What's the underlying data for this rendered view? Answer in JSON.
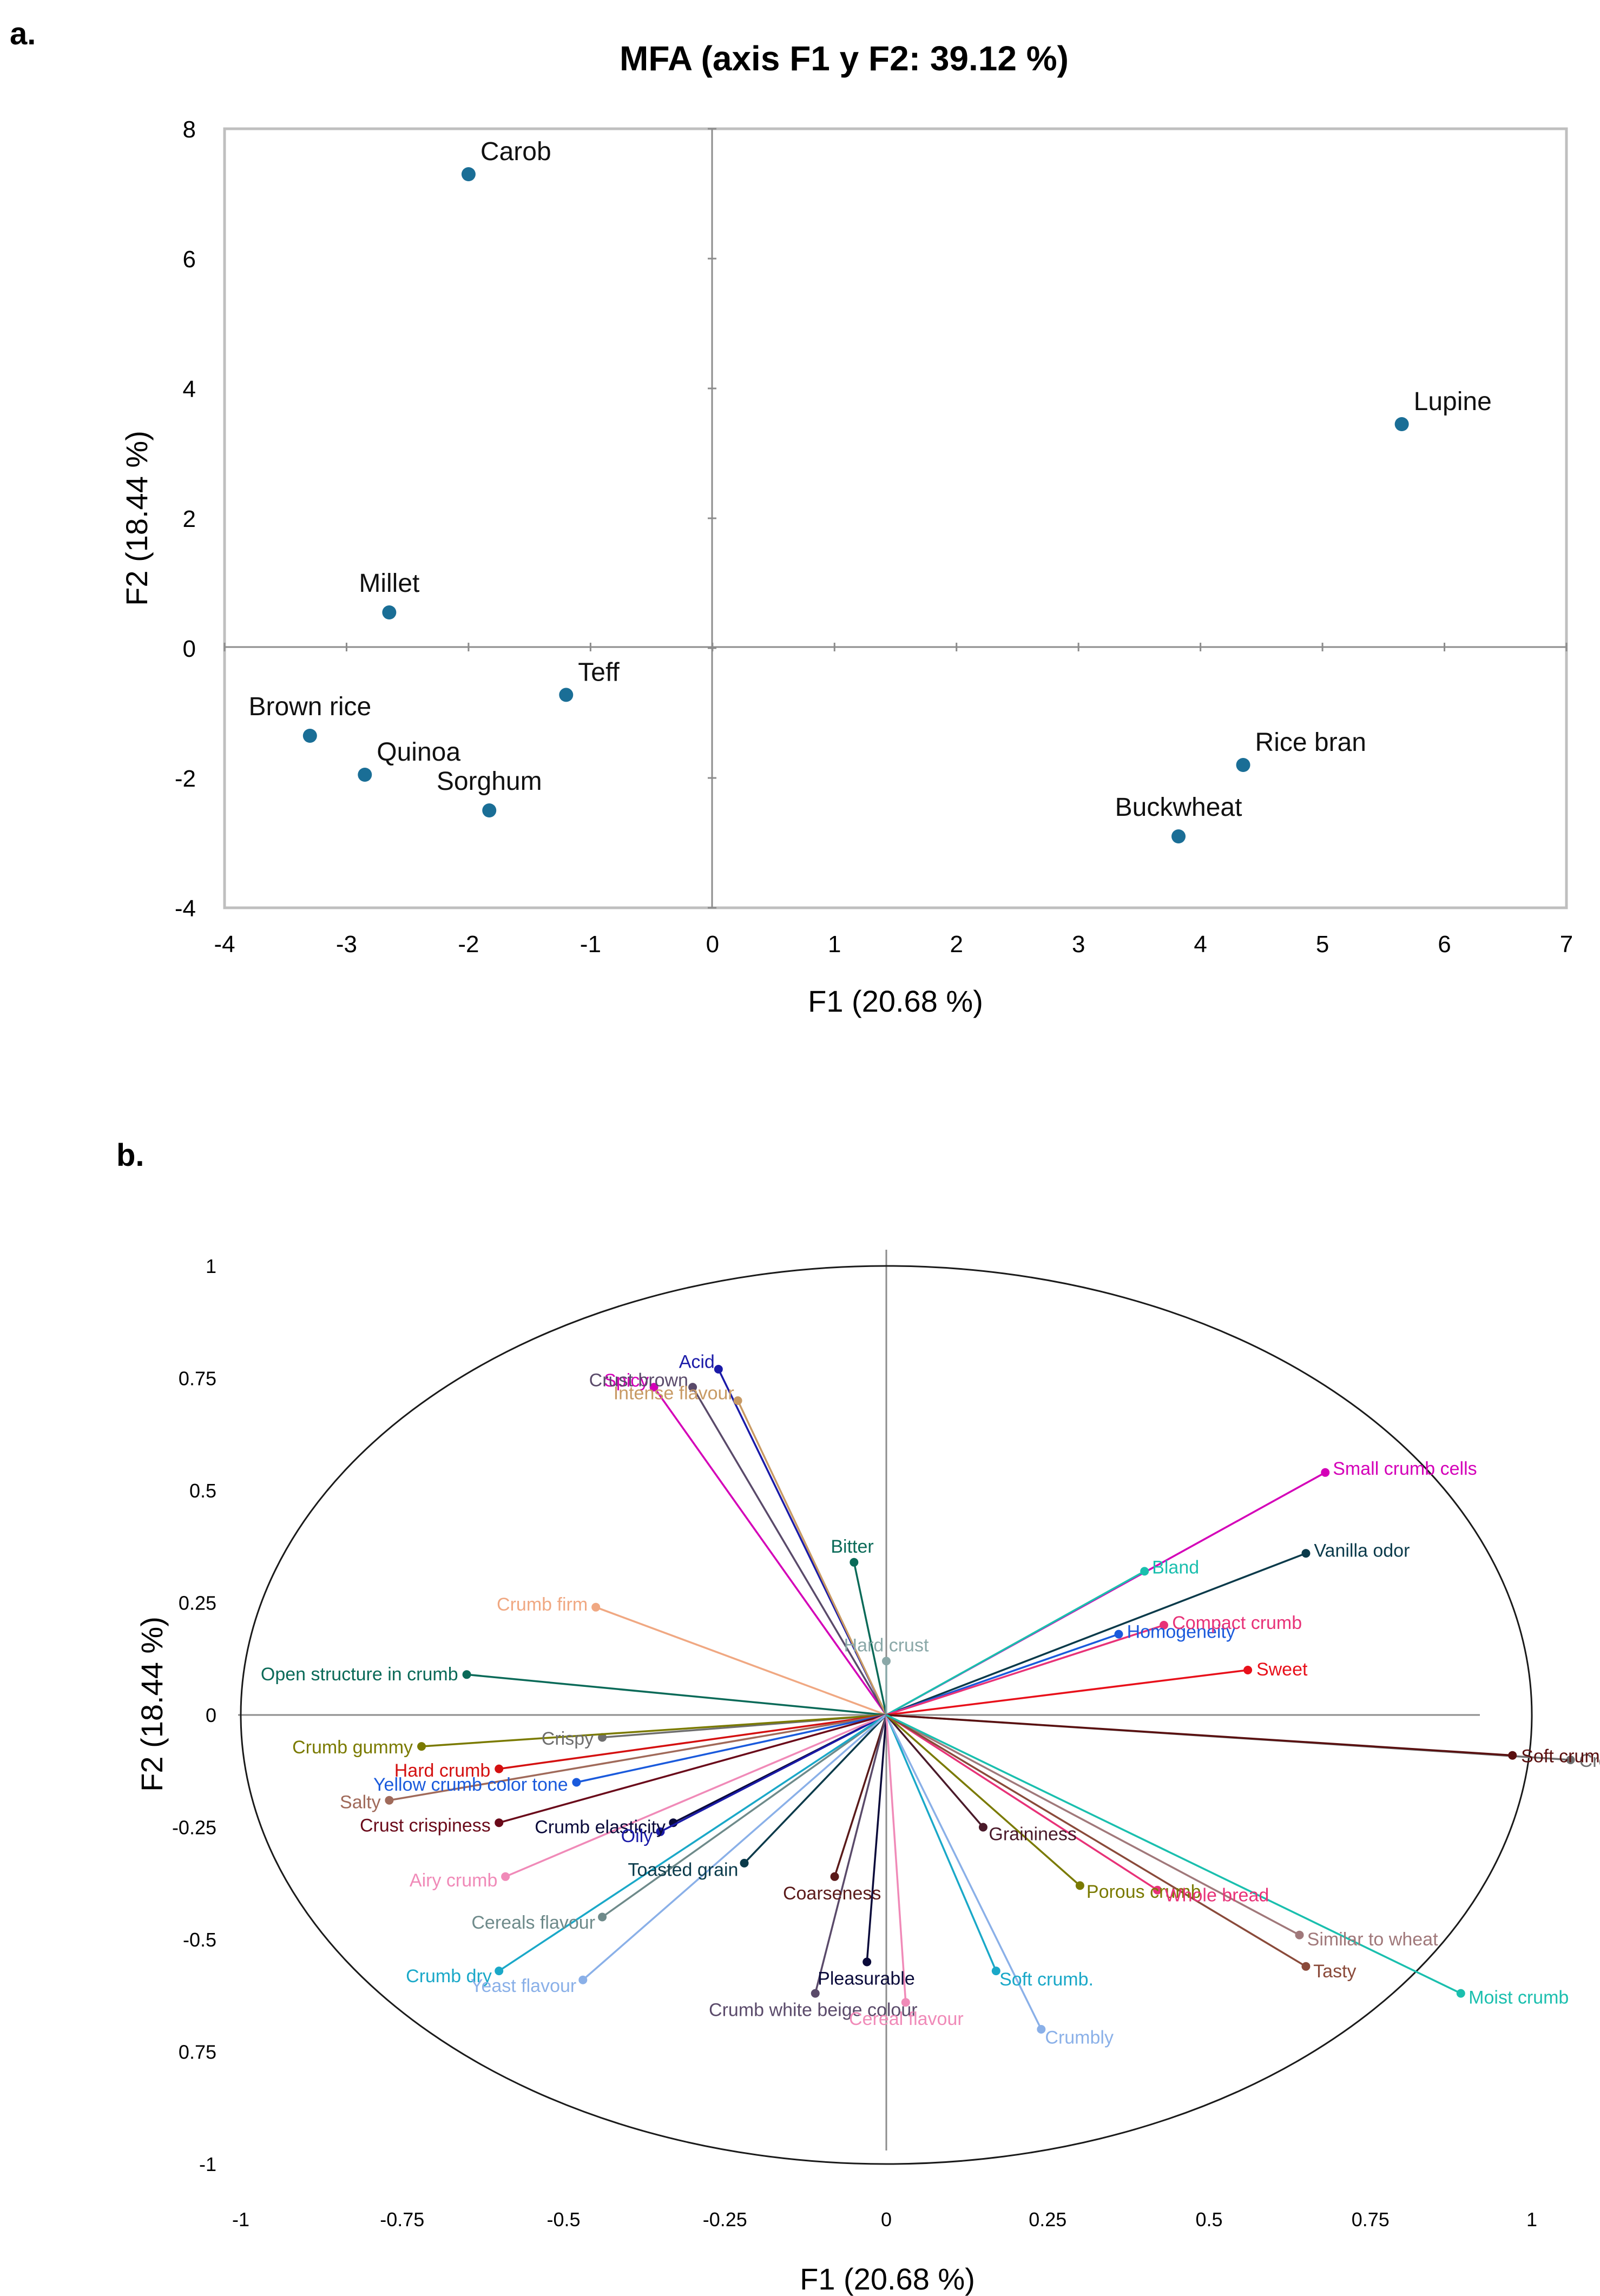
{
  "panels": {
    "a_label": "a.",
    "b_label": "b."
  },
  "chart_data": [
    {
      "type": "scatter",
      "title": "MFA (axis F1 y F2: 39.12 %)",
      "xlabel": "F1 (20.68 %)",
      "ylabel": "F2 (18.44 %)",
      "xlim": [
        -4,
        7
      ],
      "ylim": [
        -4,
        8
      ],
      "xticks": [
        "-4",
        "-3",
        "-2",
        "-1",
        "0",
        "1",
        "2",
        "3",
        "4",
        "5",
        "6",
        "7"
      ],
      "yticks": [
        "8",
        "6",
        "4",
        "2",
        "0",
        "-2",
        "-4"
      ],
      "point_color": "#1a6e96",
      "points": [
        {
          "label": "Carob",
          "x": -2.0,
          "y": 7.3,
          "pos": "ne"
        },
        {
          "label": "Lupine",
          "x": 5.65,
          "y": 3.45,
          "pos": "ne"
        },
        {
          "label": "Millet",
          "x": -2.65,
          "y": 0.55,
          "pos": "n"
        },
        {
          "label": "Teff",
          "x": -1.2,
          "y": -0.72,
          "pos": "ne"
        },
        {
          "label": "Brown rice",
          "x": -3.3,
          "y": -1.35,
          "pos": "n"
        },
        {
          "label": "Quinoa",
          "x": -2.85,
          "y": -1.95,
          "pos": "ne"
        },
        {
          "label": "Sorghum",
          "x": -1.83,
          "y": -2.5,
          "pos": "n"
        },
        {
          "label": "Rice bran",
          "x": 4.35,
          "y": -1.8,
          "pos": "ne"
        },
        {
          "label": "Buckwheat",
          "x": 3.82,
          "y": -2.9,
          "pos": "n"
        }
      ]
    },
    {
      "type": "correlation-circle",
      "xlabel": "F1 (20.68 %)",
      "ylabel": "F2 (18.44 %)",
      "xlim": [
        -1,
        1
      ],
      "ylim": [
        -1,
        1
      ],
      "xticks": [
        "-1",
        "-0.75",
        "-0.5",
        "-0.25",
        "0",
        "0.25",
        "0.5",
        "0.75",
        "1"
      ],
      "yticks": [
        "1",
        "0.75",
        "0.5",
        "0.25",
        "0",
        "-0.25",
        "-0.5",
        "0.75",
        "-1"
      ],
      "vectors": [
        {
          "label": "Spicy",
          "x": -0.36,
          "y": 0.73,
          "color": "#d400b8"
        },
        {
          "label": "Acid",
          "x": -0.26,
          "y": 0.77,
          "color": "#1a1aa8"
        },
        {
          "label": "Crust brown",
          "x": -0.3,
          "y": 0.73,
          "color": "#5a4a6a"
        },
        {
          "label": "Intense flavour",
          "x": -0.23,
          "y": 0.7,
          "color": "#c89a64"
        },
        {
          "label": "Bitter",
          "x": -0.05,
          "y": 0.34,
          "color": "#0a6a58"
        },
        {
          "label": "Hard crust",
          "x": 0.0,
          "y": 0.12,
          "color": "#8aa8a8"
        },
        {
          "label": "Crumb firm",
          "x": -0.45,
          "y": 0.24,
          "color": "#f0a882"
        },
        {
          "label": "Open structure in crumb",
          "x": -0.65,
          "y": 0.09,
          "color": "#0a6a58"
        },
        {
          "label": "Small crumb cells",
          "x": 0.68,
          "y": 0.54,
          "color": "#d400b8"
        },
        {
          "label": "Vanilla odor",
          "x": 0.65,
          "y": 0.36,
          "color": "#0a3a4a"
        },
        {
          "label": "Bland",
          "x": 0.4,
          "y": 0.32,
          "color": "#1abfae"
        },
        {
          "label": "Homogeneity",
          "x": 0.36,
          "y": 0.18,
          "color": "#1a5adc"
        },
        {
          "label": "Compact crumb",
          "x": 0.43,
          "y": 0.2,
          "color": "#e83278"
        },
        {
          "label": "Sweet",
          "x": 0.56,
          "y": 0.1,
          "color": "#e8101a"
        },
        {
          "label": "Creamy",
          "x": 1.06,
          "y": -0.1,
          "color": "#6e6e6e"
        },
        {
          "label": "Soft crumb",
          "x": 0.97,
          "y": -0.09,
          "color": "#5a1010"
        },
        {
          "label": "Crispy",
          "x": -0.44,
          "y": -0.05,
          "color": "#6e6e6e"
        },
        {
          "label": "Crumb gummy",
          "x": -0.72,
          "y": -0.07,
          "color": "#7a7a00"
        },
        {
          "label": "Hard crumb",
          "x": -0.6,
          "y": -0.12,
          "color": "#d41010"
        },
        {
          "label": "Salty",
          "x": -0.77,
          "y": -0.19,
          "color": "#a06a5a"
        },
        {
          "label": "Yellow crumb color tone",
          "x": -0.48,
          "y": -0.15,
          "color": "#1a5adc"
        },
        {
          "label": "Crust crispiness",
          "x": -0.6,
          "y": -0.24,
          "color": "#6a0a1a"
        },
        {
          "label": "Crumb elasticity",
          "x": -0.33,
          "y": -0.24,
          "color": "#0a0a3a"
        },
        {
          "label": "Oily",
          "x": -0.35,
          "y": -0.26,
          "color": "#1a1aa8"
        },
        {
          "label": "Airy crumb",
          "x": -0.59,
          "y": -0.36,
          "color": "#f08ab8"
        },
        {
          "label": "Toasted grain",
          "x": -0.22,
          "y": -0.33,
          "color": "#0a3a4a"
        },
        {
          "label": "Coarseness",
          "x": -0.08,
          "y": -0.36,
          "color": "#5a1a1a"
        },
        {
          "label": "Cereals flavour",
          "x": -0.44,
          "y": -0.45,
          "color": "#6e8a8a"
        },
        {
          "label": "Crumb dry",
          "x": -0.6,
          "y": -0.57,
          "color": "#1aa8c8"
        },
        {
          "label": "Yeast flavour",
          "x": -0.47,
          "y": -0.59,
          "color": "#8ab0e8"
        },
        {
          "label": "Pleasurable",
          "x": -0.03,
          "y": -0.55,
          "color": "#0a0a3a"
        },
        {
          "label": "Crumb white beige colour",
          "x": -0.11,
          "y": -0.62,
          "color": "#5a4a6a"
        },
        {
          "label": "Cereal flavour",
          "x": 0.03,
          "y": -0.64,
          "color": "#f08ab8"
        },
        {
          "label": "Soft crumb.",
          "x": 0.17,
          "y": -0.57,
          "color": "#1aa8c8"
        },
        {
          "label": "Crumbly",
          "x": 0.24,
          "y": -0.7,
          "color": "#8ab0e8"
        },
        {
          "label": "Graininess",
          "x": 0.15,
          "y": -0.25,
          "color": "#4a1a2a"
        },
        {
          "label": "Porous crumb",
          "x": 0.3,
          "y": -0.38,
          "color": "#7a7a00"
        },
        {
          "label": "Whole bread",
          "x": 0.42,
          "y": -0.39,
          "color": "#e83278"
        },
        {
          "label": "Similar to wheat",
          "x": 0.64,
          "y": -0.49,
          "color": "#a0787a"
        },
        {
          "label": "Tasty",
          "x": 0.65,
          "y": -0.56,
          "color": "#8a4a3a"
        },
        {
          "label": "Moist crumb",
          "x": 0.89,
          "y": -0.62,
          "color": "#1abfae"
        }
      ]
    }
  ]
}
